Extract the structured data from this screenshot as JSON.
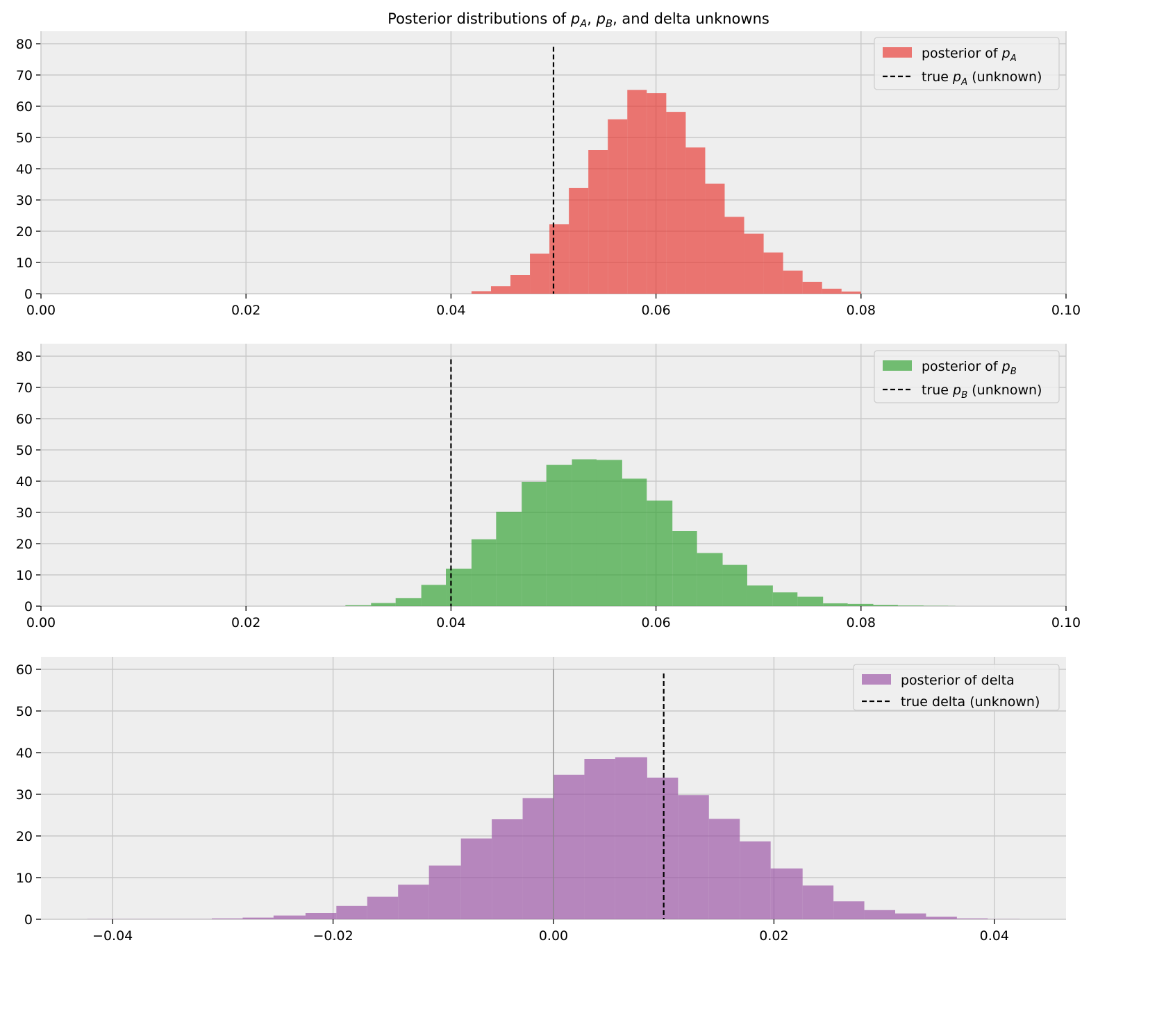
{
  "figure_title": "Posterior distributions of $p_A$, $p_B$, and delta unknowns",
  "chart_data": [
    {
      "type": "bar",
      "title": "Posterior distributions of $p_A$, $p_B$, and delta unknowns",
      "xlim": [
        0.0,
        0.1
      ],
      "ylim": [
        0,
        84
      ],
      "xticks": [
        "0.00",
        "0.02",
        "0.04",
        "0.06",
        "0.08",
        "0.10"
      ],
      "yticks": [
        "0",
        "10",
        "20",
        "30",
        "40",
        "50",
        "60",
        "70",
        "80"
      ],
      "grid": true,
      "legend_position": "top-right",
      "color": "#e8322c",
      "histogram": {
        "bin_edges": [
          0.042,
          0.0439,
          0.0458,
          0.0477,
          0.0496,
          0.0515,
          0.0534,
          0.0553,
          0.0572,
          0.0591,
          0.061,
          0.0629,
          0.0648,
          0.0667,
          0.0686,
          0.0705,
          0.0724,
          0.0743,
          0.0762,
          0.0781,
          0.08
        ],
        "counts": [
          0.8,
          2.4,
          6.0,
          12.8,
          22.2,
          33.8,
          46.0,
          55.8,
          65.2,
          64.2,
          58.2,
          46.8,
          35.2,
          24.6,
          19.2,
          13.2,
          7.4,
          3.8,
          1.6,
          0.7
        ]
      },
      "reference_line": {
        "x": 0.05,
        "y_top": 79
      },
      "legend": [
        {
          "kind": "patch",
          "label": "posterior of $p_A$"
        },
        {
          "kind": "dash",
          "label": "true $p_A$ (unknown)"
        }
      ]
    },
    {
      "type": "bar",
      "xlim": [
        0.0,
        0.1
      ],
      "ylim": [
        0,
        84
      ],
      "xticks": [
        "0.00",
        "0.02",
        "0.04",
        "0.06",
        "0.08",
        "0.10"
      ],
      "yticks": [
        "0",
        "10",
        "20",
        "30",
        "40",
        "50",
        "60",
        "70",
        "80"
      ],
      "grid": true,
      "legend_position": "top-right",
      "color": "#2ca02c",
      "histogram": {
        "bin_edges": [
          0.0297,
          0.0322,
          0.0346,
          0.0371,
          0.0395,
          0.042,
          0.0444,
          0.0469,
          0.0493,
          0.0518,
          0.0542,
          0.0567,
          0.0591,
          0.0616,
          0.064,
          0.0665,
          0.0689,
          0.0714,
          0.0738,
          0.0763,
          0.0787,
          0.0812,
          0.0836,
          0.0861,
          0.0885,
          0.0892
        ],
        "counts": [
          0.3,
          1.0,
          2.6,
          6.8,
          12.0,
          21.4,
          30.2,
          39.8,
          45.2,
          47.0,
          46.8,
          40.8,
          33.8,
          24.0,
          17.0,
          13.2,
          6.6,
          4.4,
          3.0,
          0.9,
          0.7,
          0.4,
          0.2,
          0.1,
          0.05
        ]
      },
      "reference_line": {
        "x": 0.04,
        "y_top": 79
      },
      "legend": [
        {
          "kind": "patch",
          "label": "posterior of $p_B$"
        },
        {
          "kind": "dash",
          "label": "true $p_B$ (unknown)"
        }
      ]
    },
    {
      "type": "bar",
      "xlim": [
        -0.0465,
        0.0465
      ],
      "ylim": [
        0,
        63
      ],
      "xticks": [
        "−0.04",
        "−0.02",
        "0.00",
        "0.02",
        "0.04"
      ],
      "xtick_values": [
        -0.04,
        -0.02,
        0.0,
        0.02,
        0.04
      ],
      "yticks": [
        "0",
        "10",
        "20",
        "30",
        "40",
        "50",
        "60"
      ],
      "grid": true,
      "legend_position": "top-right",
      "color": "#984ea3",
      "histogram": {
        "bin_edges": [
          -0.0423,
          -0.0395,
          -0.0366,
          -0.0338,
          -0.031,
          -0.0282,
          -0.0254,
          -0.0225,
          -0.0197,
          -0.0169,
          -0.0141,
          -0.0113,
          -0.0084,
          -0.0056,
          -0.0028,
          0.0,
          0.0028,
          0.0056,
          0.0085,
          0.0113,
          0.0141,
          0.0169,
          0.0197,
          0.0226,
          0.0254,
          0.0282,
          0.031,
          0.0338,
          0.0366,
          0.0394,
          0.0423
        ],
        "counts": [
          0.05,
          0.05,
          0.05,
          0.05,
          0.2,
          0.4,
          0.9,
          1.5,
          3.2,
          5.4,
          8.3,
          12.9,
          19.4,
          24.0,
          29.1,
          34.7,
          38.5,
          38.9,
          34.0,
          29.8,
          24.1,
          18.7,
          12.2,
          8.1,
          4.3,
          2.2,
          1.4,
          0.6,
          0.2,
          0.05
        ]
      },
      "reference_line": {
        "x": 0.01,
        "y_top": 59
      },
      "zero_line": {
        "x": 0.0,
        "y_top": 60
      },
      "legend": [
        {
          "kind": "patch",
          "label": "posterior of delta"
        },
        {
          "kind": "dash",
          "label": "true delta (unknown)"
        }
      ]
    }
  ]
}
